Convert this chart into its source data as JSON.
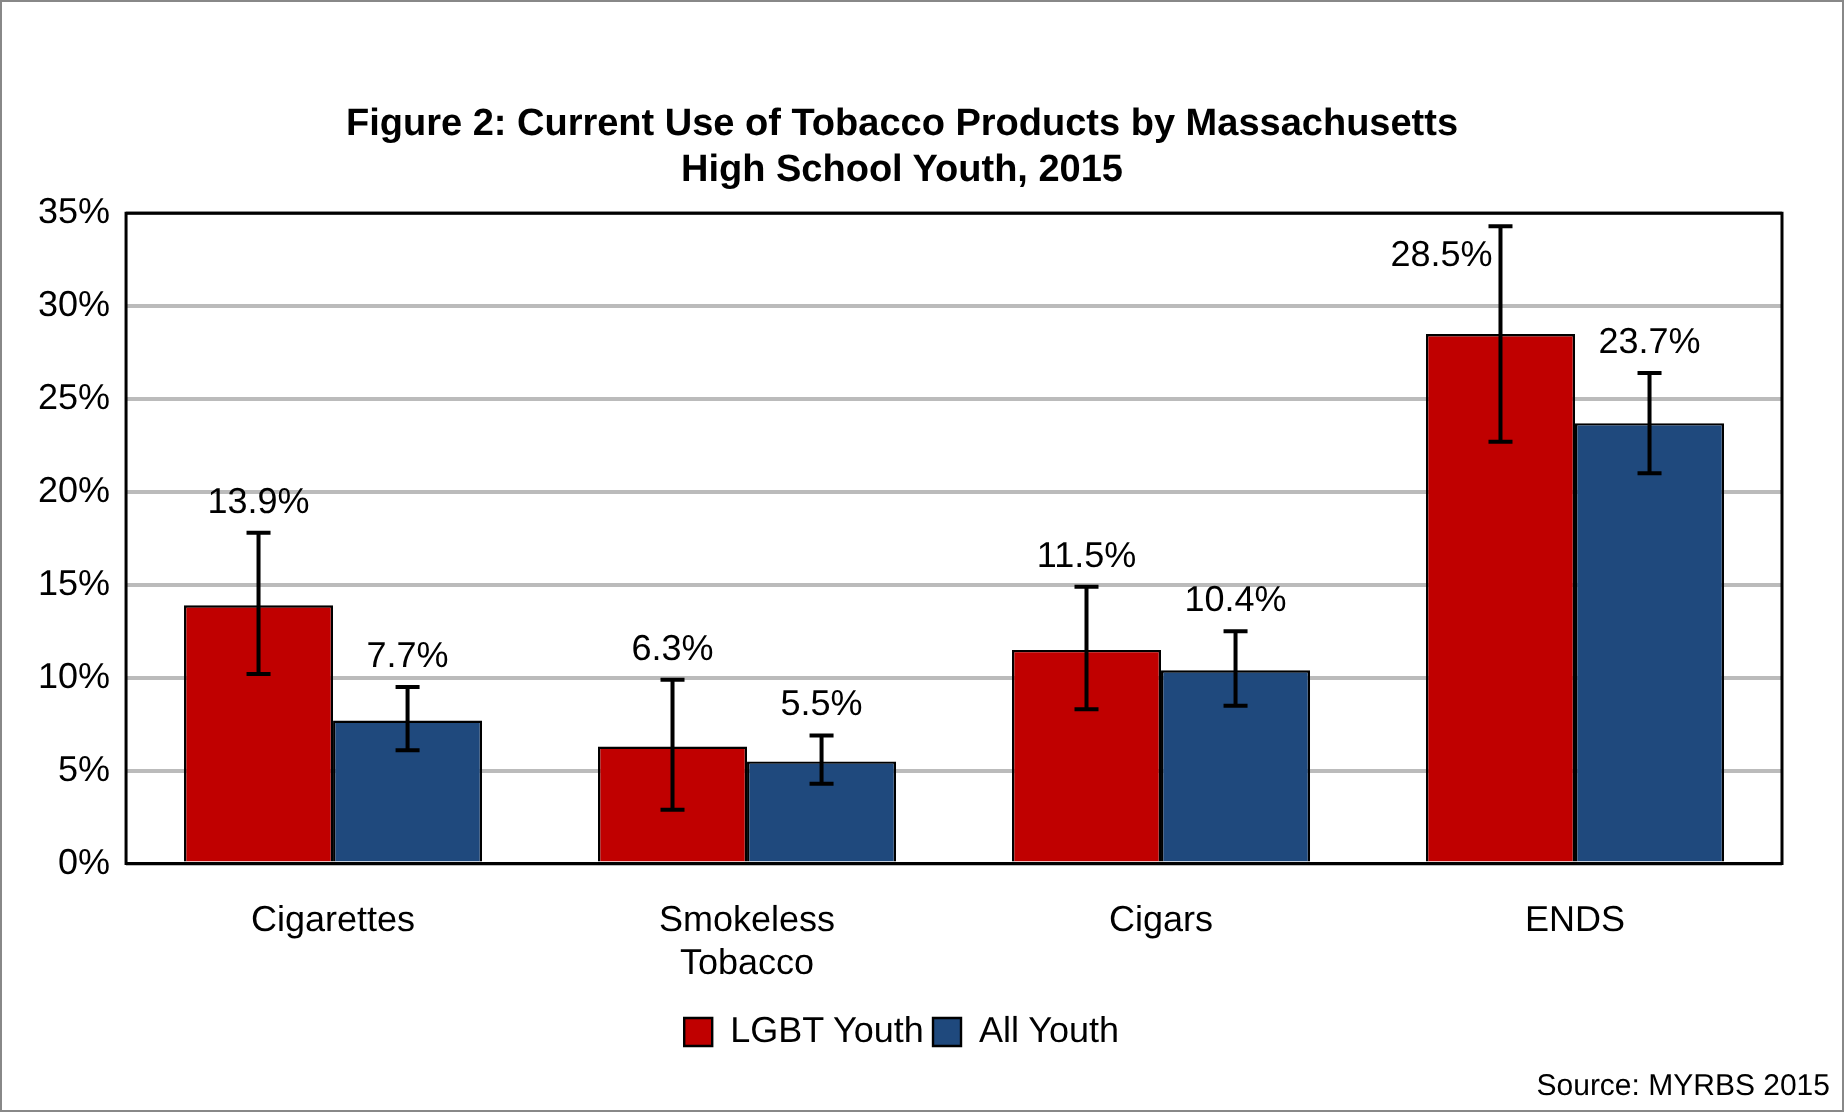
{
  "chart_data": {
    "type": "bar",
    "title": [
      "Figure 2: Current Use of Tobacco Products by Massachusetts",
      "High School Youth, 2015"
    ],
    "categories": [
      [
        "Cigarettes"
      ],
      [
        "Smokeless",
        "Tobacco"
      ],
      [
        "Cigars"
      ],
      [
        "ENDS"
      ]
    ],
    "series": [
      {
        "name": "LGBT Youth",
        "color": "#c00000",
        "values": [
          13.9,
          6.3,
          11.5,
          28.5
        ],
        "value_labels": [
          "13.9%",
          "6.3%",
          "11.5%",
          "28.5%"
        ],
        "errors": [
          [
            10.2,
            17.8
          ],
          [
            2.9,
            9.9
          ],
          [
            8.3,
            14.9
          ],
          [
            22.7,
            34.3
          ]
        ]
      },
      {
        "name": "All Youth",
        "color": "#1f497d",
        "values": [
          7.7,
          5.5,
          10.4,
          23.7
        ],
        "value_labels": [
          "7.7%",
          "5.5%",
          "10.4%",
          "23.7%"
        ],
        "errors": [
          [
            6.1,
            9.5
          ],
          [
            4.3,
            6.9
          ],
          [
            8.5,
            12.5
          ],
          [
            21.0,
            26.4
          ]
        ]
      }
    ],
    "ylim": [
      0,
      35
    ],
    "yticks": [
      {
        "value": 0,
        "label": "0%"
      },
      {
        "value": 5,
        "label": "5%"
      },
      {
        "value": 10,
        "label": "10%"
      },
      {
        "value": 15,
        "label": "15%"
      },
      {
        "value": 20,
        "label": "20%"
      },
      {
        "value": 25,
        "label": "25%"
      },
      {
        "value": 30,
        "label": "30%"
      },
      {
        "value": 35,
        "label": "35%"
      }
    ],
    "grid": "y",
    "legend": "bottom",
    "annotations": [
      "Source: MYRBS 2015"
    ]
  }
}
